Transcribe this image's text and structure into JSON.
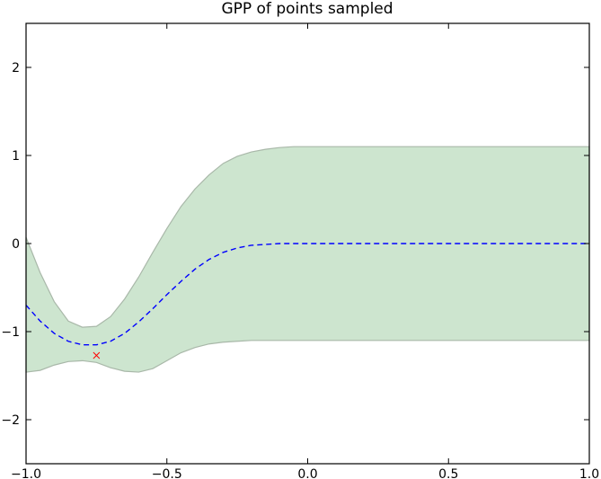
{
  "chart_data": {
    "type": "line",
    "title": "GPP of points sampled",
    "xlabel": "",
    "ylabel": "",
    "xlim": [
      -1.0,
      1.0
    ],
    "ylim": [
      -2.5,
      2.5
    ],
    "x_ticks": [
      -1.0,
      -0.5,
      0.0,
      0.5,
      1.0
    ],
    "x_tick_labels": [
      "−1.0",
      "−0.5",
      "0.0",
      "0.5",
      "1.0"
    ],
    "y_ticks": [
      -2,
      -1,
      0,
      1,
      2
    ],
    "y_tick_labels": [
      "−2",
      "−1",
      "0",
      "1",
      "2"
    ],
    "grid": false,
    "x": [
      -1.0,
      -0.95,
      -0.9,
      -0.85,
      -0.8,
      -0.75,
      -0.7,
      -0.65,
      -0.6,
      -0.55,
      -0.5,
      -0.45,
      -0.4,
      -0.35,
      -0.3,
      -0.25,
      -0.2,
      -0.15,
      -0.1,
      -0.05,
      0.0,
      0.1,
      0.2,
      0.4,
      0.6,
      0.8,
      1.0
    ],
    "series": [
      {
        "style": "dashed",
        "color": "#0000ff",
        "values": [
          -0.7,
          -0.88,
          -1.02,
          -1.11,
          -1.15,
          -1.15,
          -1.11,
          -1.02,
          -0.89,
          -0.74,
          -0.58,
          -0.43,
          -0.29,
          -0.18,
          -0.1,
          -0.05,
          -0.02,
          -0.01,
          0.0,
          0.0,
          0.0,
          0.0,
          0.0,
          0.0,
          0.0,
          0.0,
          0.0
        ]
      }
    ],
    "band": {
      "color": "#cde5cf",
      "edge_color": "#a9b8a9",
      "upper": [
        0.07,
        -0.33,
        -0.66,
        -0.88,
        -0.95,
        -0.94,
        -0.83,
        -0.63,
        -0.38,
        -0.1,
        0.17,
        0.42,
        0.62,
        0.78,
        0.91,
        0.99,
        1.04,
        1.07,
        1.09,
        1.1,
        1.1,
        1.1,
        1.1,
        1.1,
        1.1,
        1.1,
        1.1
      ],
      "lower": [
        -1.46,
        -1.44,
        -1.38,
        -1.34,
        -1.33,
        -1.35,
        -1.41,
        -1.45,
        -1.46,
        -1.42,
        -1.33,
        -1.24,
        -1.18,
        -1.14,
        -1.12,
        -1.11,
        -1.1,
        -1.1,
        -1.1,
        -1.1,
        -1.1,
        -1.1,
        -1.1,
        -1.1,
        -1.1,
        -1.1,
        -1.1
      ]
    },
    "samples": [
      {
        "x": -0.75,
        "y": -1.27,
        "marker": "x",
        "color": "#ff0000"
      }
    ]
  }
}
